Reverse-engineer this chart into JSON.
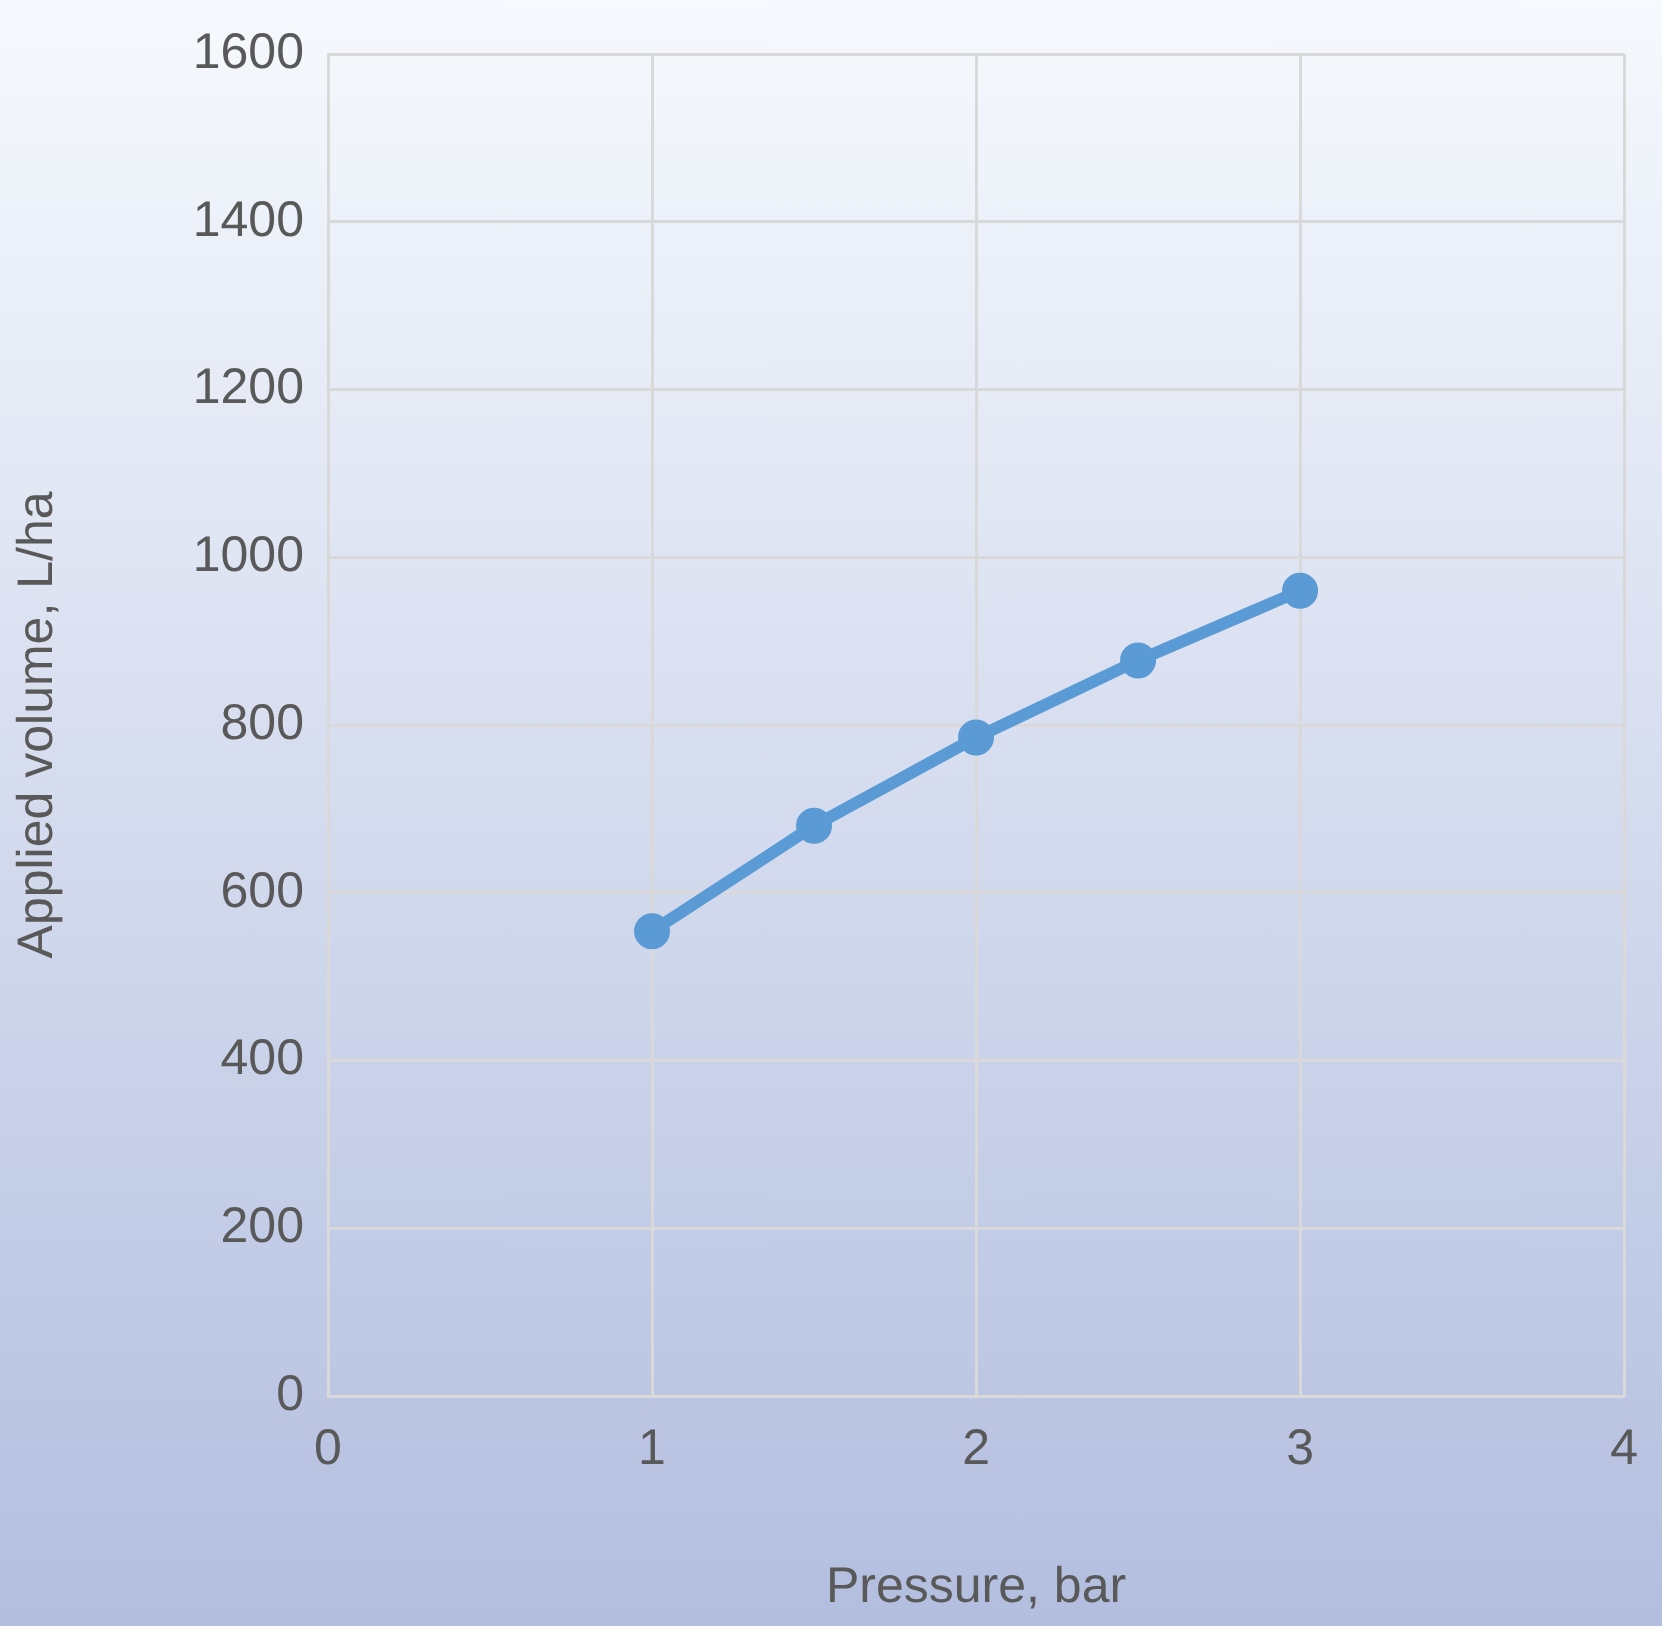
{
  "chart_data": {
    "type": "line",
    "xlabel": "Pressure, bar",
    "ylabel": "Applied volume, L/ha",
    "x": [
      1,
      1.5,
      2,
      2.5,
      3
    ],
    "series": [
      {
        "color": "#5b9bd5",
        "values": [
          554,
          680,
          785,
          877,
          960
        ]
      }
    ],
    "xlim": [
      0,
      4
    ],
    "xticks": [
      0,
      1,
      2,
      3,
      4
    ],
    "ylim": [
      0,
      1600
    ],
    "yticks": [
      0,
      200,
      400,
      600,
      800,
      1000,
      1200,
      1400,
      1600
    ],
    "grid": true,
    "legend": false,
    "marker": "circle",
    "line_style": "solid"
  }
}
